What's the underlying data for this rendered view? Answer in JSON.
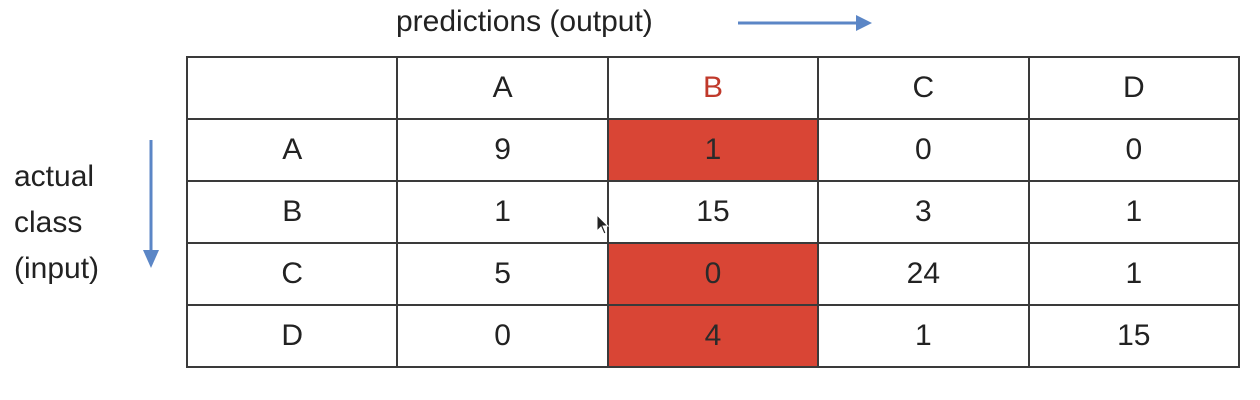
{
  "labels": {
    "predictions": "predictions (output)",
    "actual_line1": "actual",
    "actual_line2": "class",
    "actual_line3": "(input)"
  },
  "colors": {
    "arrow": "#5b86c6",
    "highlight_fill": "#d94535",
    "highlight_header_text": "#c0392b",
    "border": "#3a3a3a"
  },
  "matrix": {
    "column_headers": [
      "A",
      "B",
      "C",
      "D"
    ],
    "highlighted_column": "B",
    "highlighted_cells": [
      [
        0,
        1
      ],
      [
        2,
        1
      ],
      [
        3,
        1
      ]
    ],
    "rows": [
      {
        "label": "A",
        "values": [
          "9",
          "1",
          "0",
          "0"
        ]
      },
      {
        "label": "B",
        "values": [
          "1",
          "15",
          "3",
          "1"
        ]
      },
      {
        "label": "C",
        "values": [
          "5",
          "0",
          "24",
          "1"
        ]
      },
      {
        "label": "D",
        "values": [
          "0",
          "4",
          "1",
          "15"
        ]
      }
    ]
  }
}
